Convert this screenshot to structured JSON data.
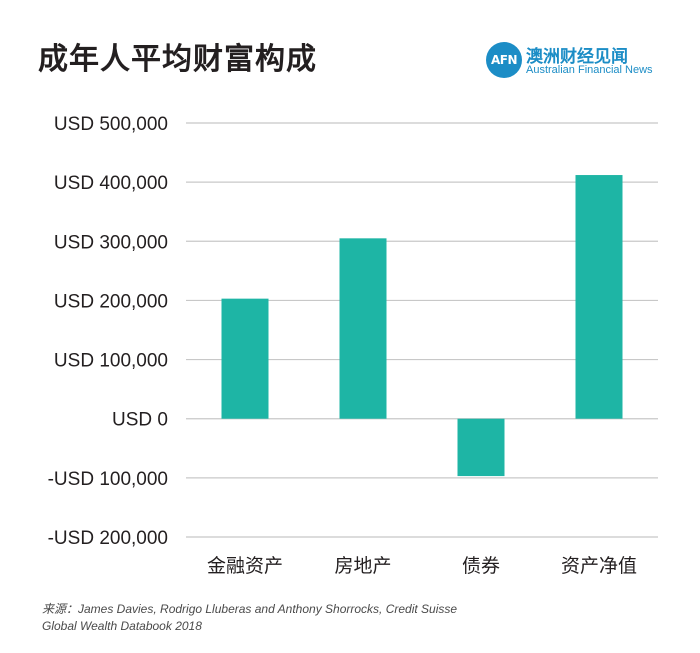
{
  "title": "成年人平均财富构成",
  "brand": {
    "logo_text": "AFN",
    "name_cn": "澳洲财经见闻",
    "name_en": "Australian Financial News",
    "color": "#1c8dc6"
  },
  "source": {
    "line1": "来源：James Davies, Rodrigo Lluberas and Anthony Shorrocks, Credit Suisse",
    "line2": "Global Wealth Databook 2018"
  },
  "chart_data": {
    "type": "bar",
    "categories": [
      "金融资产",
      "房地产",
      "债券",
      "资产净值"
    ],
    "values": [
      203000,
      305000,
      -97000,
      412000
    ],
    "ylim": [
      -200000,
      500000
    ],
    "yticks": [
      500000,
      400000,
      300000,
      200000,
      100000,
      0,
      -100000,
      -200000
    ],
    "ytick_labels": [
      "USD 500,000",
      "USD 400,000",
      "USD 300,000",
      "USD 200,000",
      "USD 100,000",
      "USD 0",
      "-USD 100,000",
      "-USD 200,000"
    ],
    "bar_color": "#1eb5a5",
    "grid_color": "#c8c8c8",
    "grid": true
  }
}
